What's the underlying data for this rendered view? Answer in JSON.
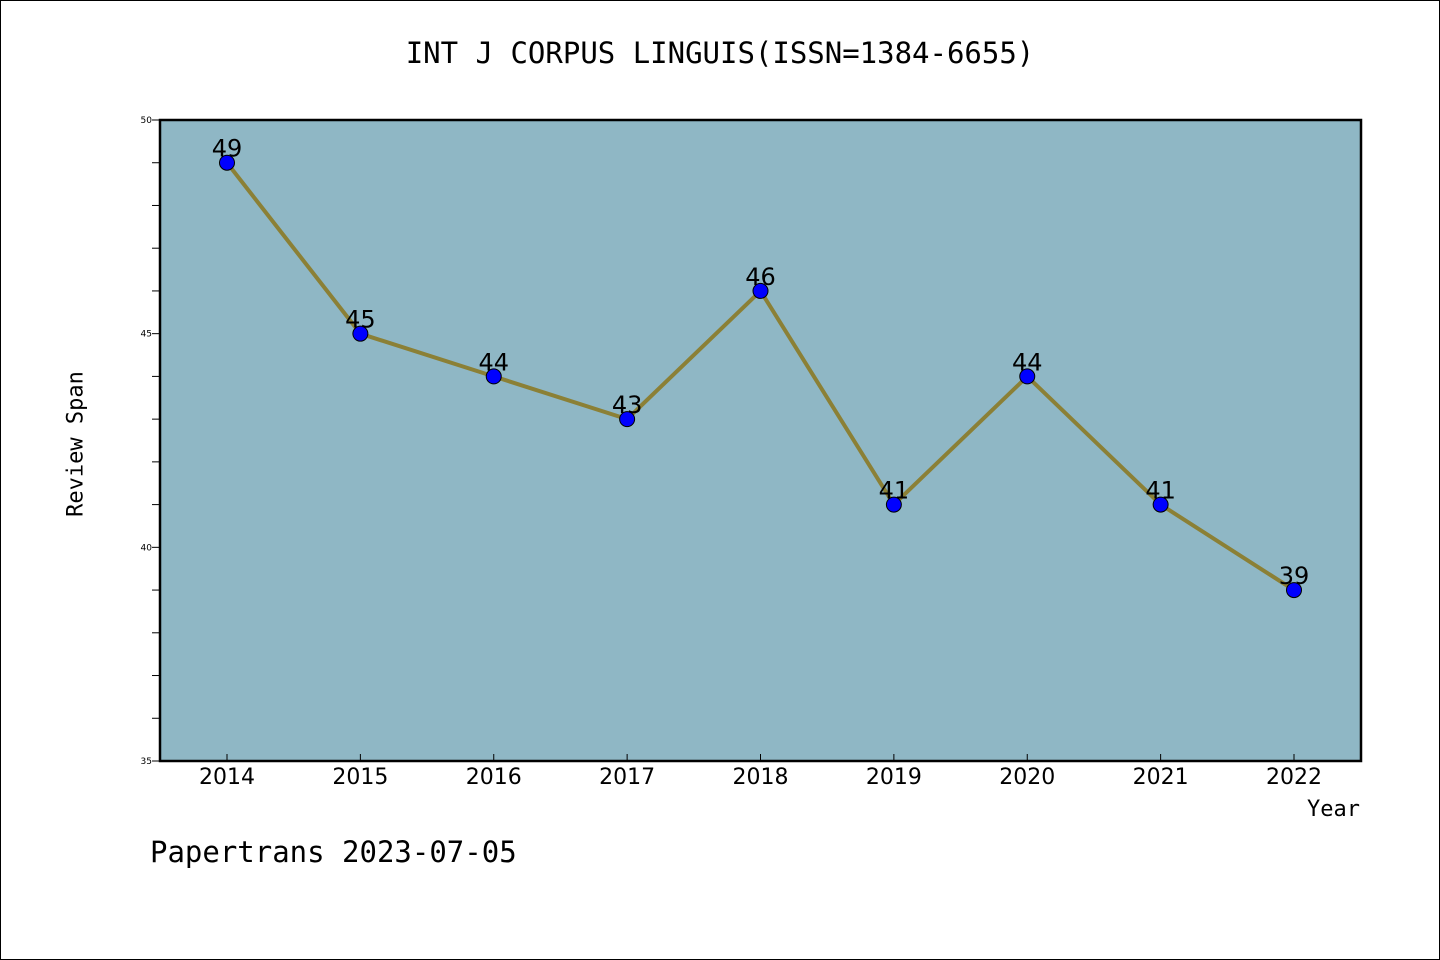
{
  "chart_data": {
    "type": "line",
    "title": "INT J CORPUS LINGUIS(ISSN=1384-6655)",
    "xlabel": "Year",
    "ylabel": "Review Span",
    "categories": [
      "2014",
      "2015",
      "2016",
      "2017",
      "2018",
      "2019",
      "2020",
      "2021",
      "2022"
    ],
    "values": [
      49,
      45,
      44,
      43,
      46,
      41,
      44,
      41,
      39
    ],
    "data_labels": [
      "49",
      "45",
      "44",
      "43",
      "46",
      "41",
      "44",
      "41",
      "39"
    ],
    "ylim": [
      35,
      50
    ],
    "yticks": [
      35,
      40,
      45,
      50
    ],
    "ytick_labels": [
      "35",
      "40",
      "45",
      "50"
    ],
    "grid": false,
    "colors": {
      "plot_background": "#8fb7c5",
      "line": "#8b8036",
      "marker": "#0000ff"
    }
  },
  "footer": "Papertrans 2023-07-05"
}
